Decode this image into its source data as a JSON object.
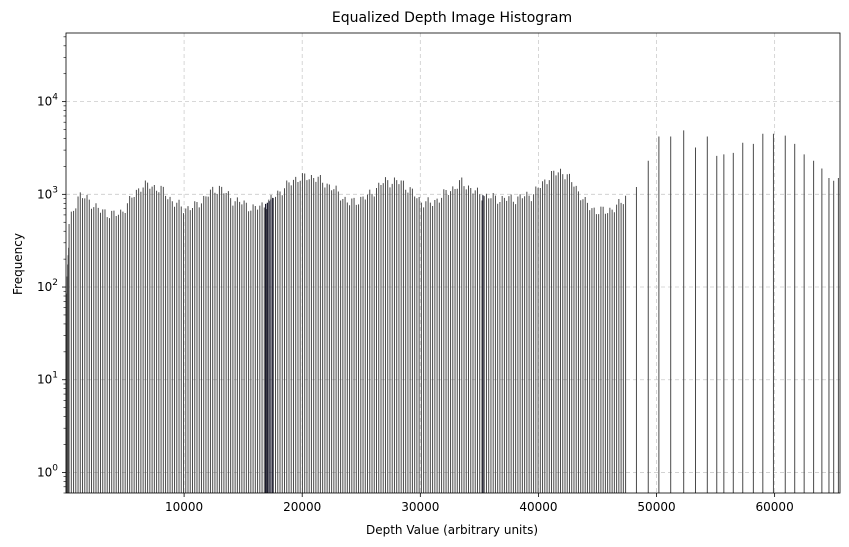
{
  "chart_data": {
    "type": "bar",
    "title": "Equalized Depth Image Histogram",
    "xlabel": "Depth Value (arbitrary units)",
    "ylabel": "Frequency",
    "xlim": [
      0,
      65535
    ],
    "ylim": [
      0.6,
      55000
    ],
    "yscale": "log",
    "grid": true,
    "bar_color": "#4a4a4a",
    "grid_color": "#cccccc",
    "x_ticks": [
      {
        "value": 10000,
        "label": "10000"
      },
      {
        "value": 20000,
        "label": "20000"
      },
      {
        "value": 30000,
        "label": "30000"
      },
      {
        "value": 40000,
        "label": "40000"
      },
      {
        "value": 50000,
        "label": "50000"
      },
      {
        "value": 60000,
        "label": "60000"
      }
    ],
    "y_ticks": [
      {
        "value": 1,
        "base": "10",
        "exp": "0"
      },
      {
        "value": 10,
        "base": "10",
        "exp": "1"
      },
      {
        "value": 100,
        "base": "10",
        "exp": "2"
      },
      {
        "value": 1000,
        "base": "10",
        "exp": "3"
      },
      {
        "value": 10000,
        "base": "10",
        "exp": "4"
      }
    ],
    "profile_x": [
      0,
      300,
      800,
      1100,
      2000,
      3000,
      4500,
      5800,
      6400,
      7000,
      8000,
      9000,
      10000,
      11000,
      12000,
      13000,
      14000,
      15000,
      16000,
      17000,
      18000,
      19500,
      21000,
      22500,
      24000,
      25500,
      27000,
      28500,
      30000,
      31000,
      32000,
      33500,
      35000,
      36500,
      38000,
      39500,
      41000,
      42000,
      43000,
      44000,
      45000,
      46500,
      47500
    ],
    "profile_y": [
      250,
      500,
      800,
      1000,
      850,
      650,
      600,
      1000,
      1250,
      1250,
      1150,
      850,
      700,
      750,
      1000,
      1200,
      900,
      800,
      700,
      800,
      1050,
      1500,
      1550,
      1200,
      800,
      950,
      1400,
      1350,
      850,
      800,
      1000,
      1350,
      1000,
      900,
      900,
      1000,
      1600,
      1800,
      1300,
      800,
      650,
      700,
      1000
    ],
    "sparse_bins": [
      {
        "x": 48300,
        "y": 1200
      },
      {
        "x": 49300,
        "y": 2300
      },
      {
        "x": 50200,
        "y": 4200
      },
      {
        "x": 51200,
        "y": 4200
      },
      {
        "x": 52300,
        "y": 4900
      },
      {
        "x": 53300,
        "y": 3200
      },
      {
        "x": 54300,
        "y": 4200
      },
      {
        "x": 55100,
        "y": 2600
      },
      {
        "x": 55700,
        "y": 2700
      },
      {
        "x": 56500,
        "y": 2800
      },
      {
        "x": 57300,
        "y": 3600
      },
      {
        "x": 58200,
        "y": 3500
      },
      {
        "x": 59000,
        "y": 4500
      },
      {
        "x": 59900,
        "y": 4500
      },
      {
        "x": 60900,
        "y": 4300
      },
      {
        "x": 61700,
        "y": 3500
      },
      {
        "x": 62500,
        "y": 2700
      },
      {
        "x": 63300,
        "y": 2300
      },
      {
        "x": 64000,
        "y": 1900
      },
      {
        "x": 64600,
        "y": 1500
      },
      {
        "x": 65000,
        "y": 1400
      },
      {
        "x": 65400,
        "y": 1500
      }
    ]
  }
}
